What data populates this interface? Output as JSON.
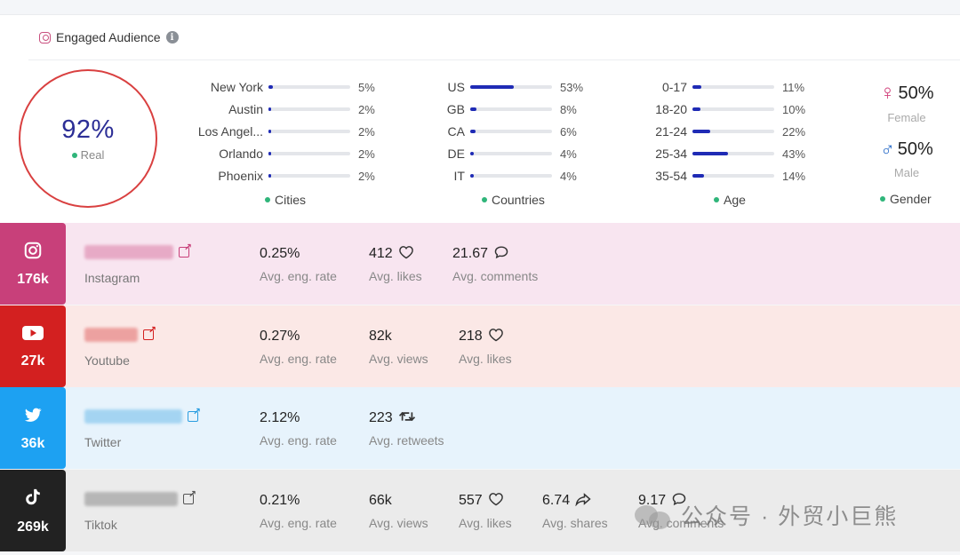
{
  "header": {
    "title": "Engaged Audience"
  },
  "score": {
    "value": "92%",
    "label": "Real"
  },
  "cities": {
    "caption": "Cities",
    "items": [
      {
        "name": "New York",
        "pct": "5%",
        "fill": 0.05
      },
      {
        "name": "Austin",
        "pct": "2%",
        "fill": 0.02
      },
      {
        "name": "Los Angel...",
        "pct": "2%",
        "fill": 0.02
      },
      {
        "name": "Orlando",
        "pct": "2%",
        "fill": 0.02
      },
      {
        "name": "Phoenix",
        "pct": "2%",
        "fill": 0.02
      }
    ]
  },
  "countries": {
    "caption": "Countries",
    "items": [
      {
        "name": "US",
        "pct": "53%",
        "fill": 0.53
      },
      {
        "name": "GB",
        "pct": "8%",
        "fill": 0.08
      },
      {
        "name": "CA",
        "pct": "6%",
        "fill": 0.06
      },
      {
        "name": "DE",
        "pct": "4%",
        "fill": 0.04
      },
      {
        "name": "IT",
        "pct": "4%",
        "fill": 0.04
      }
    ]
  },
  "age": {
    "caption": "Age",
    "items": [
      {
        "name": "0-17",
        "pct": "11%",
        "fill": 0.11
      },
      {
        "name": "18-20",
        "pct": "10%",
        "fill": 0.1
      },
      {
        "name": "21-24",
        "pct": "22%",
        "fill": 0.22
      },
      {
        "name": "25-34",
        "pct": "43%",
        "fill": 0.43
      },
      {
        "name": "35-54",
        "pct": "14%",
        "fill": 0.14
      }
    ]
  },
  "gender": {
    "caption": "Gender",
    "female": {
      "symbol": "♀",
      "pct": "50%",
      "label": "Female"
    },
    "male": {
      "symbol": "♂",
      "pct": "50%",
      "label": "Male"
    }
  },
  "platforms": [
    {
      "key": "instagram",
      "platform": "Instagram",
      "count": "176k",
      "badge_color": "#c8407a",
      "row_color": "#f8e5f0",
      "link_color": "#c8407a",
      "metrics": [
        {
          "value": "0.25%",
          "label": "Avg. eng. rate",
          "icon": ""
        },
        {
          "value": "412",
          "label": "Avg. likes",
          "icon": "heart-icon"
        },
        {
          "value": "21.67",
          "label": "Avg. comments",
          "icon": "comment-icon"
        }
      ]
    },
    {
      "key": "youtube",
      "platform": "Youtube",
      "count": "27k",
      "badge_color": "#d32020",
      "row_color": "#fbe8e6",
      "link_color": "#d32020",
      "metrics": [
        {
          "value": "0.27%",
          "label": "Avg. eng. rate",
          "icon": ""
        },
        {
          "value": "82k",
          "label": "Avg. views",
          "icon": ""
        },
        {
          "value": "218",
          "label": "Avg. likes",
          "icon": "heart-icon"
        }
      ]
    },
    {
      "key": "twitter",
      "platform": "Twitter",
      "count": "36k",
      "badge_color": "#1da1f2",
      "row_color": "#e7f3fc",
      "link_color": "#2a9de0",
      "metrics": [
        {
          "value": "2.12%",
          "label": "Avg. eng. rate",
          "icon": ""
        },
        {
          "value": "223",
          "label": "Avg. retweets",
          "icon": "retweet-icon"
        }
      ]
    },
    {
      "key": "tiktok",
      "platform": "Tiktok",
      "count": "269k",
      "badge_color": "#222222",
      "row_color": "#ebebeb",
      "link_color": "#555555",
      "metrics": [
        {
          "value": "0.21%",
          "label": "Avg. eng. rate",
          "icon": ""
        },
        {
          "value": "66k",
          "label": "Avg. views",
          "icon": ""
        },
        {
          "value": "557",
          "label": "Avg. likes",
          "icon": "heart-icon"
        },
        {
          "value": "6.74",
          "label": "Avg. shares",
          "icon": "share-icon"
        },
        {
          "value": "9.17",
          "label": "Avg. comments",
          "icon": "comment-icon"
        }
      ]
    }
  ],
  "watermark": {
    "text": "公众号 · 外贸小巨熊"
  }
}
